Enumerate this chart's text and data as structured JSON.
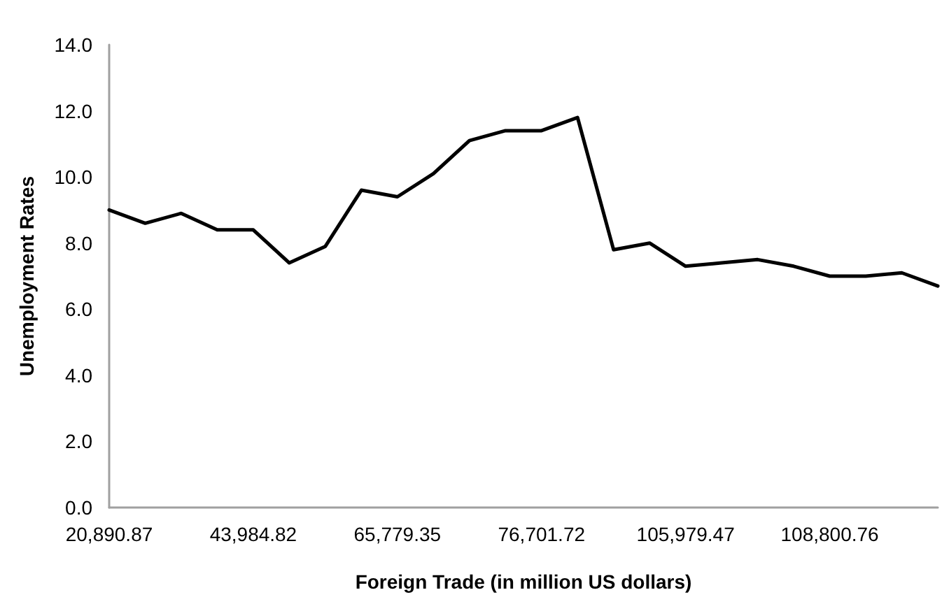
{
  "chart_data": {
    "type": "line",
    "xlabel": "Foreign Trade (in million US dollars)",
    "ylabel": "Unemployment Rates",
    "categories": [
      "20,890.87",
      null,
      null,
      null,
      "43,984.82",
      null,
      null,
      null,
      "65,779.35",
      null,
      null,
      null,
      "76,701.72",
      null,
      null,
      null,
      "105,979.47",
      null,
      null,
      null,
      "108,800.76",
      null,
      null,
      null
    ],
    "series": [
      {
        "color": "#000000",
        "values": [
          9.0,
          8.6,
          8.9,
          8.4,
          8.4,
          7.4,
          7.9,
          9.6,
          9.4,
          10.1,
          11.1,
          11.4,
          11.4,
          11.8,
          7.8,
          8.0,
          7.3,
          7.4,
          7.5,
          7.3,
          7.0,
          7.0,
          7.1,
          6.7
        ]
      }
    ],
    "ylim": [
      0,
      14
    ],
    "yticks": [
      {
        "value": 0,
        "label": "0.0"
      },
      {
        "value": 2,
        "label": "2.0"
      },
      {
        "value": 4,
        "label": "4.0"
      },
      {
        "value": 6,
        "label": "6.0"
      },
      {
        "value": 8,
        "label": "8.0"
      },
      {
        "value": 10,
        "label": "10.0"
      },
      {
        "value": 12,
        "label": "12.0"
      },
      {
        "value": 14,
        "label": "14.0"
      }
    ],
    "grid": false,
    "marker": "none",
    "line_style": "solid"
  }
}
